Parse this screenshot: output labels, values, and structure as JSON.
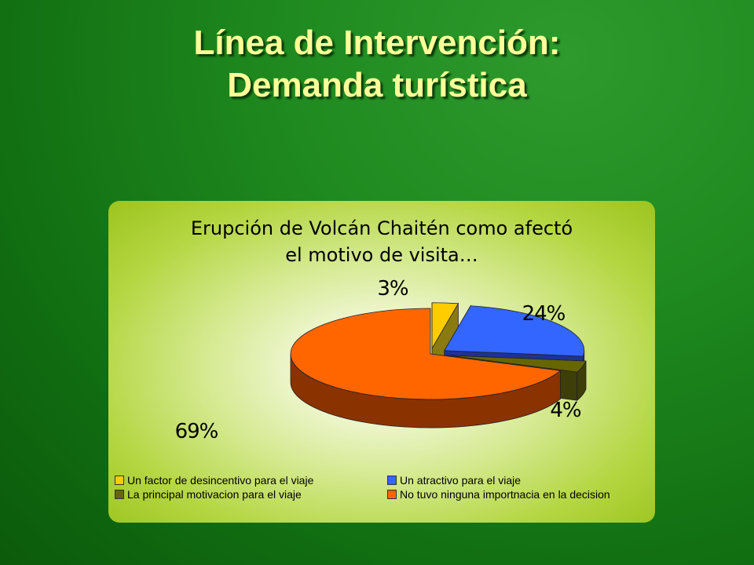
{
  "slide": {
    "title_line1": "Línea de Intervención:",
    "title_line2": "Demanda turística"
  },
  "chart_data": {
    "type": "pie",
    "title_line1": "Erupción de Volcán Chaitén como afectó",
    "title_line2": "el motivo de visita…",
    "legend_position": "bottom",
    "slices": [
      {
        "label": "Un factor de desincentivo para el viaje",
        "value": 3,
        "value_label": "3%",
        "color": "#ffcc00",
        "side_color": "#8a7a10"
      },
      {
        "label": "Un atractivo para el viaje",
        "value": 24,
        "value_label": "24%",
        "color": "#3366ff",
        "side_color": "#1c3296"
      },
      {
        "label": "La principal motivacion para el viaje",
        "value": 4,
        "value_label": "4%",
        "color": "#666600",
        "side_color": "#3e3e0a"
      },
      {
        "label": "No tuvo ninguna importnacia en la decision",
        "value": 69,
        "value_label": "69%",
        "color": "#ff6600",
        "side_color": "#8a3300"
      }
    ]
  }
}
